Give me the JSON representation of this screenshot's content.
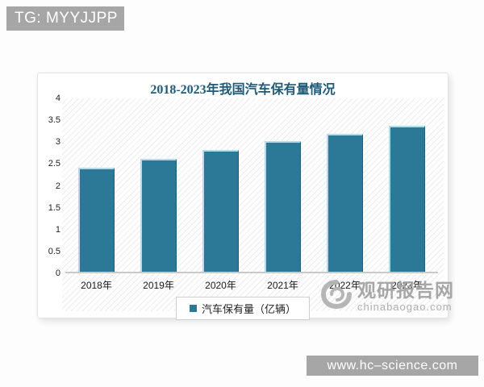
{
  "header": {
    "tg_label": "TG: MYYJJPP"
  },
  "footer": {
    "site_label": "www.hc–science.com"
  },
  "watermark": {
    "name": "观研报告网",
    "domain": "chinabaogao.com"
  },
  "colors": {
    "bar_fill": "#2c7897",
    "bar_highlight": "#b7d9e8",
    "title_color": "#1f5a78",
    "gray_bar": "#a6a6a6",
    "watermark_color": "#a3a3a3"
  },
  "chart_data": {
    "type": "bar",
    "title": "2018-2023年我国汽车保有量情况",
    "categories": [
      "2018年",
      "2019年",
      "2020年",
      "2021年",
      "2022年",
      "2023年"
    ],
    "values": [
      2.4,
      2.6,
      2.81,
      3.02,
      3.19,
      3.36
    ],
    "legend_label": "汽车保有量（亿辆）",
    "xlabel": "",
    "ylabel": "",
    "ylim": [
      0,
      4
    ],
    "yticks": [
      0,
      0.5,
      1,
      1.5,
      2,
      2.5,
      3,
      3.5,
      4
    ],
    "grid": false,
    "legend_position": "bottom"
  }
}
